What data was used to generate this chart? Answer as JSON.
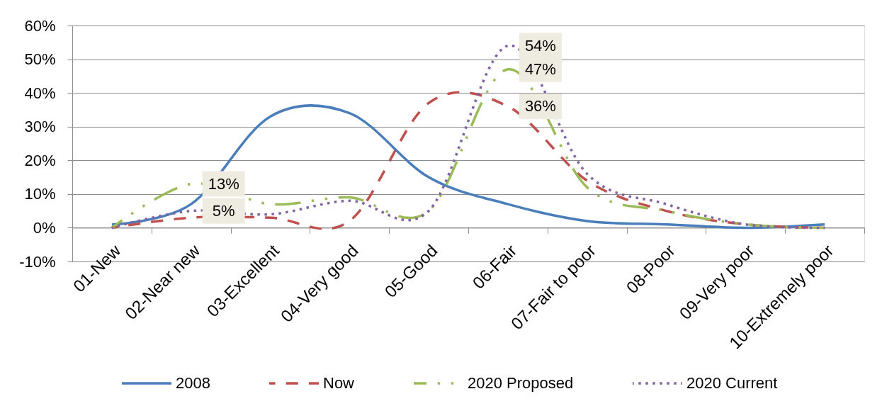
{
  "chart_data": {
    "type": "line",
    "categories": [
      "01-New",
      "02-Near new",
      "03-Excellent",
      "04-Very good",
      "05-Good",
      "06-Fair",
      "07-Fair to poor",
      "08-Poor",
      "09-Very poor",
      "10-Extremely poor"
    ],
    "ylim": [
      -10,
      60
    ],
    "yticks": [
      {
        "value": -10,
        "label": "-10%"
      },
      {
        "value": 0,
        "label": "0%"
      },
      {
        "value": 10,
        "label": "10%"
      },
      {
        "value": 20,
        "label": "20%"
      },
      {
        "value": 30,
        "label": "30%"
      },
      {
        "value": 40,
        "label": "40%"
      },
      {
        "value": 50,
        "label": "50%"
      },
      {
        "value": 60,
        "label": "60%"
      }
    ],
    "grid": "y",
    "legend": "bottom",
    "series": [
      {
        "name": "2008",
        "color": "#4a7ebb",
        "line_style": "solid",
        "values": [
          1,
          7,
          33,
          34,
          15,
          7,
          2,
          1,
          0,
          1
        ]
      },
      {
        "name": "Now",
        "color": "#c0504d",
        "line_style": "dashed",
        "values": [
          0,
          3,
          3,
          2,
          37,
          36,
          14,
          5,
          1,
          0
        ],
        "value_labels": [
          null,
          null,
          null,
          null,
          null,
          "36%",
          null,
          null,
          null,
          null
        ]
      },
      {
        "name": "2020 Proposed",
        "color": "#9bbb59",
        "line_style": "dashdot",
        "values": [
          0,
          13,
          7,
          9,
          5,
          47,
          12,
          5,
          1,
          0
        ],
        "value_labels": [
          null,
          "13%",
          null,
          null,
          null,
          "47%",
          null,
          null,
          null,
          null
        ]
      },
      {
        "name": "2020 Current",
        "color": "#8064a2",
        "line_style": "dotted",
        "values": [
          0,
          5,
          4,
          8,
          5,
          54,
          16,
          7,
          1,
          0
        ],
        "value_labels": [
          null,
          "5%",
          null,
          null,
          null,
          "54%",
          null,
          null,
          null,
          null
        ]
      }
    ]
  }
}
